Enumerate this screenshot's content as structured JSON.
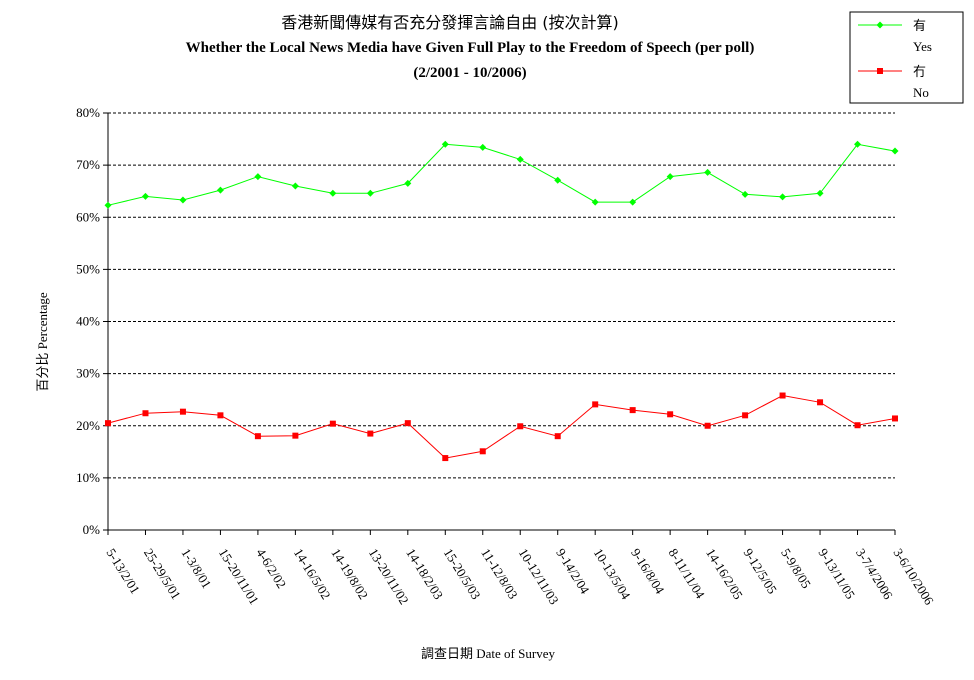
{
  "chart_data": {
    "type": "line",
    "title": "香港新聞傳媒有否充分發揮言論自由 (按次計算)",
    "subtitle": "Whether the Local News Media have Given Full Play to the Freedom of Speech (per poll)",
    "subtitle2": "(2/2001 - 10/2006)",
    "xlabel": "調查日期 Date of Survey",
    "ylabel": "百分比 Percentage",
    "ylim": [
      0,
      80
    ],
    "yticks": [
      "0%",
      "10%",
      "20%",
      "30%",
      "40%",
      "50%",
      "60%",
      "70%",
      "80%"
    ],
    "grid": true,
    "legend_position": "top-right",
    "categories": [
      "5-13/2/01",
      "25-29/5/01",
      "1-3/8/01",
      "15-20/11/01",
      "4-6/2/02",
      "14-16/5/02",
      "14-19/8/02",
      "13-20/11/02",
      "14-18/2/03",
      "15-20/5/03",
      "11-12/8/03",
      "10-12/11/03",
      "9-14/2/04",
      "10-13/5/04",
      "9-16/8/04",
      "8-11/11/04",
      "14-16/2/05",
      "9-12/5/05",
      "5-9/8/05",
      "9-13/11/05",
      "3-7/4/2006",
      "3-6/10/2006"
    ],
    "series": [
      {
        "name": "有",
        "name_en": "Yes",
        "color": "#00ff00",
        "marker": "diamond",
        "values": [
          62.3,
          64.0,
          63.3,
          65.2,
          67.8,
          66.0,
          64.6,
          64.6,
          66.5,
          74.0,
          73.4,
          71.1,
          67.1,
          62.9,
          62.9,
          67.8,
          68.6,
          64.4,
          63.9,
          64.6,
          74.0,
          72.7
        ]
      },
      {
        "name": "冇",
        "name_en": "No",
        "color": "#ff0000",
        "marker": "square",
        "values": [
          20.5,
          22.4,
          22.7,
          22.0,
          18.0,
          18.1,
          20.4,
          18.5,
          20.5,
          13.8,
          15.1,
          19.9,
          18.0,
          24.1,
          23.0,
          22.2,
          20.0,
          22.0,
          25.8,
          24.5,
          20.1,
          21.4
        ]
      }
    ]
  }
}
